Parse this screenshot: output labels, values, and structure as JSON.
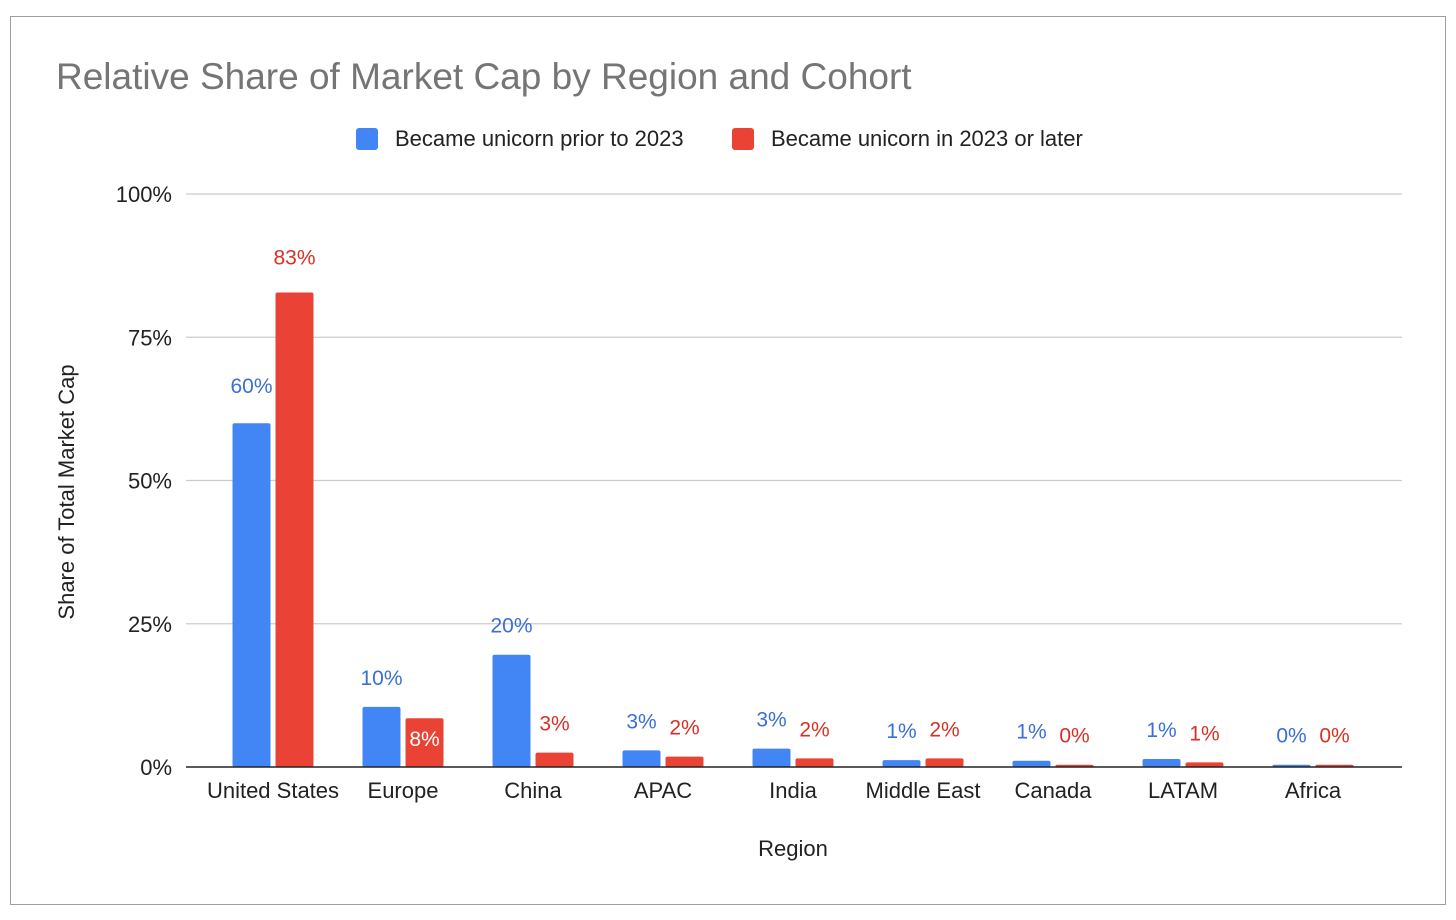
{
  "chart_data": {
    "type": "bar",
    "title": "Relative Share of Market Cap by Region and Cohort",
    "xlabel": "Region",
    "ylabel": "Share of Total Market Cap",
    "ylim": [
      0,
      100
    ],
    "yticks": [
      "0%",
      "25%",
      "50%",
      "75%",
      "100%"
    ],
    "legend_position": "top",
    "grid": true,
    "categories": [
      "United States",
      "Europe",
      "China",
      "APAC",
      "India",
      "Middle East",
      "Canada",
      "LATAM",
      "Africa"
    ],
    "series": [
      {
        "name": "Became unicorn prior to 2023",
        "color": "#4285f4",
        "label_color": "#3a6fd8",
        "values": [
          60,
          10.5,
          19.6,
          2.9,
          3.2,
          1.2,
          1.1,
          1.4,
          0.4
        ],
        "labels": [
          "60%",
          "10%",
          "20%",
          "3%",
          "3%",
          "1%",
          "1%",
          "1%",
          "0%"
        ]
      },
      {
        "name": "Became unicorn in 2023 or later",
        "color": "#ea4335",
        "label_color": "#d93025",
        "values": [
          82.8,
          8.5,
          2.5,
          1.8,
          1.5,
          1.5,
          0.4,
          0.8,
          0.4
        ],
        "labels": [
          "83%",
          "8%",
          "3%",
          "2%",
          "2%",
          "2%",
          "0%",
          "1%",
          "0%"
        ]
      }
    ]
  }
}
